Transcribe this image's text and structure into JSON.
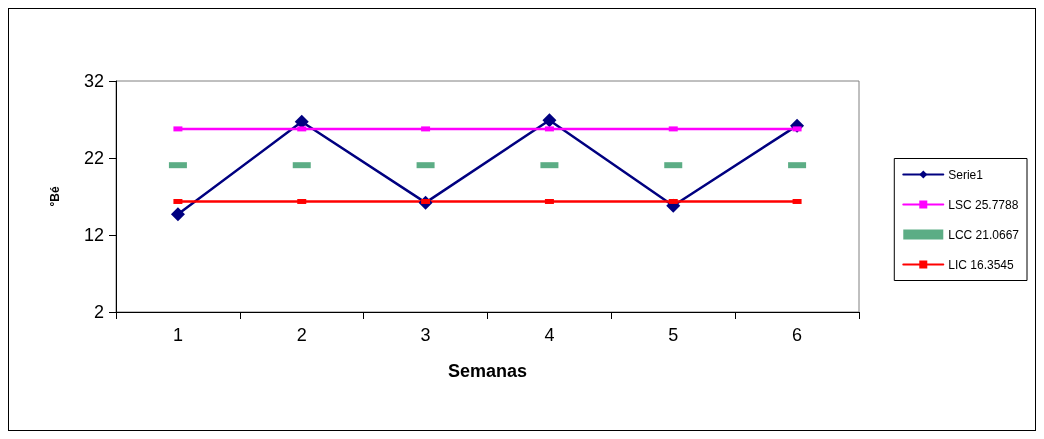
{
  "chart_data": {
    "type": "line",
    "xlabel": "Semanas",
    "ylabel": "°Bé",
    "categories": [
      "1",
      "2",
      "3",
      "4",
      "5",
      "6"
    ],
    "series": [
      {
        "name": "Serie1",
        "color": "#000080",
        "values": [
          14.7,
          26.7,
          16.2,
          26.9,
          15.8,
          26.2
        ],
        "marker": "diamond"
      },
      {
        "name": "LSC 25.7788",
        "color": "#ff00ff",
        "values": [
          25.7788,
          25.7788,
          25.7788,
          25.7788,
          25.7788,
          25.7788
        ],
        "marker": "square"
      },
      {
        "name": "LCC 21.0667",
        "type": "scatter",
        "color": "#339966",
        "values": [
          21.0667,
          21.0667,
          21.0667,
          21.0667,
          21.0667,
          21.0667
        ],
        "marker": "square"
      },
      {
        "name": "LIC 16.3545",
        "color": "#ff0000",
        "values": [
          16.3545,
          16.3545,
          16.3545,
          16.3545,
          16.3545,
          16.3545
        ],
        "marker": "square"
      }
    ],
    "ylim": [
      2,
      32
    ],
    "yticks": [
      2,
      12,
      22,
      32
    ],
    "grid": false,
    "legend": "right",
    "line_style": "solid"
  }
}
